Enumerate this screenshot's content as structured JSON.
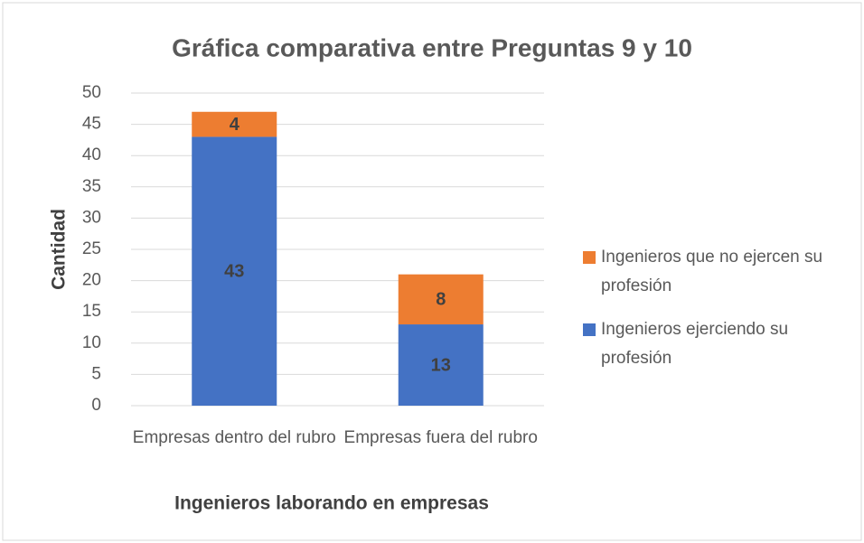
{
  "chart_data": {
    "type": "stacked_bar",
    "title": "Gráfica comparativa entre Preguntas 9 y 10",
    "y_label": "Cantidad",
    "x_label": "Ingenieros laborando en empresas",
    "categories": [
      "Empresas dentro del rubro",
      "Empresas fuera del rubro"
    ],
    "series": [
      {
        "name": "Ingenieros ejerciendo su profesión",
        "color": "#4472c4",
        "values": [
          43,
          13
        ]
      },
      {
        "name": "Ingenieros que no ejercen su profesión",
        "color": "#ed7d31",
        "values": [
          4,
          8
        ]
      }
    ],
    "ylim": [
      0,
      50
    ],
    "yticks": [
      0,
      5,
      10,
      15,
      20,
      25,
      30,
      35,
      40,
      45,
      50
    ],
    "grid": true,
    "legend": "right"
  }
}
